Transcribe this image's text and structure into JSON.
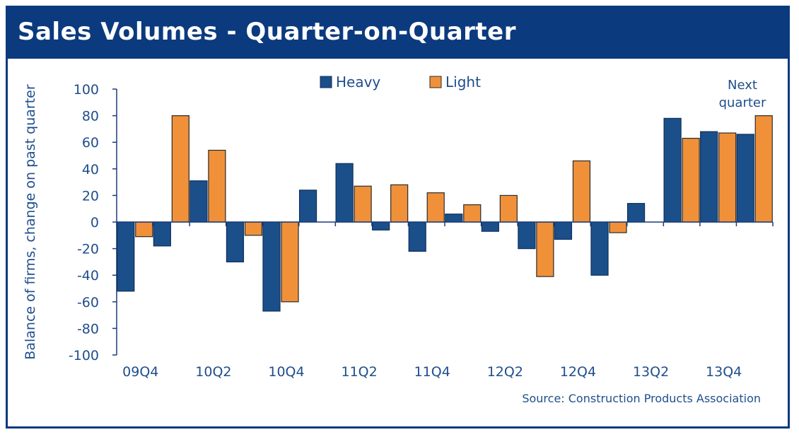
{
  "title": "Sales Volumes - Quarter-on-Quarter",
  "source": "Source: Construction Products Association",
  "annotation": [
    "Next",
    "quarter"
  ],
  "colors": {
    "heavy": "#1b4f8a",
    "light": "#f0913a",
    "frame": "#0b3a7e",
    "text": "#1f4e8c"
  },
  "chart_data": {
    "type": "bar",
    "ylabel": "Balance of firms, change on past quarter",
    "ylim": [
      -100,
      100
    ],
    "yticks": [
      100,
      80,
      60,
      40,
      20,
      0,
      -20,
      -40,
      -60,
      -80,
      -100
    ],
    "legend_position": "top-center",
    "categories": [
      "09Q4",
      "10Q1",
      "10Q2",
      "10Q3",
      "10Q4",
      "11Q1",
      "11Q2",
      "11Q3",
      "11Q4",
      "12Q1",
      "12Q2",
      "12Q3",
      "12Q4",
      "13Q1",
      "13Q2",
      "13Q3",
      "13Q4",
      "14Q1"
    ],
    "tick_labels": [
      "09Q4",
      "",
      "10Q2",
      "",
      "10Q4",
      "",
      "11Q2",
      "",
      "11Q4",
      "",
      "12Q2",
      "",
      "12Q4",
      "",
      "13Q2",
      "",
      "13Q4",
      ""
    ],
    "series": [
      {
        "name": "Heavy",
        "values": [
          -52,
          -18,
          31,
          -30,
          -67,
          24,
          44,
          -6,
          -22,
          6,
          -7,
          -20,
          -13,
          -40,
          14,
          78,
          68,
          66
        ]
      },
      {
        "name": "Light",
        "values": [
          -11,
          80,
          54,
          -10,
          -60,
          null,
          27,
          28,
          22,
          13,
          20,
          -41,
          46,
          -8,
          null,
          63,
          67,
          80
        ]
      }
    ]
  }
}
